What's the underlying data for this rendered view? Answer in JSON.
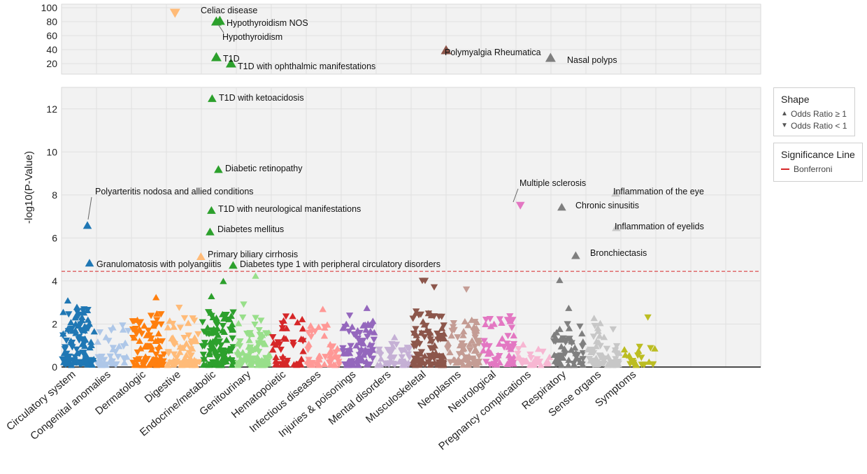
{
  "chart_data": {
    "type": "scatter",
    "ylabel": "-log10(P-Value)",
    "categories": [
      "Circulatory system",
      "Congenital anomalies",
      "Dermatologic",
      "Digestive",
      "Endocrine/metabolic",
      "Genitourinary",
      "Hematopoietic",
      "Infectious diseases",
      "Injuries & poisonings",
      "Mental disorders",
      "Musculoskeletal",
      "Neoplasms",
      "Neurological",
      "Pregnancy complications",
      "Respiratory",
      "Sense organs",
      "Symptoms"
    ],
    "category_colors": [
      "#1f77b4",
      "#aec7e8",
      "#ff7f0e",
      "#ffbb78",
      "#2ca02c",
      "#98df8a",
      "#d62728",
      "#ff9896",
      "#9467bd",
      "#c5b0d5",
      "#8c564b",
      "#c49c94",
      "#e377c2",
      "#f7b6d2",
      "#7f7f7f",
      "#c7c7c7",
      "#bcbd22"
    ],
    "upper_panel": {
      "ylim": [
        5,
        105
      ],
      "yticks": [
        "20",
        "40",
        "60",
        "80",
        "100"
      ]
    },
    "lower_panel": {
      "ylim": [
        0,
        13
      ],
      "yticks": [
        "0",
        "2",
        "4",
        "6",
        "8",
        "10",
        "12"
      ]
    },
    "bonferroni_threshold": 4.45,
    "annotated_points": [
      {
        "label": "Celiac disease",
        "category": "Digestive",
        "y": 92,
        "direction": "down",
        "panel": "upper"
      },
      {
        "label": "Hypothyroidism NOS",
        "category": "Endocrine/metabolic",
        "y": 82,
        "direction": "up",
        "panel": "upper"
      },
      {
        "label": "Hypothyroidism",
        "category": "Endocrine/metabolic",
        "y": 81,
        "direction": "up",
        "panel": "upper"
      },
      {
        "label": "T1D",
        "category": "Endocrine/metabolic",
        "y": 30,
        "direction": "up",
        "panel": "upper"
      },
      {
        "label": "T1D with ophthalmic manifestations",
        "category": "Endocrine/metabolic",
        "y": 21,
        "direction": "up",
        "panel": "upper"
      },
      {
        "label": "Polymyalgia Rheumatica",
        "category": "Musculoskeletal",
        "y": 40,
        "direction": "up",
        "panel": "upper"
      },
      {
        "label": "Nasal polyps",
        "category": "Respiratory",
        "y": 29,
        "direction": "up",
        "panel": "upper"
      },
      {
        "label": "T1D with ketoacidosis",
        "category": "Endocrine/metabolic",
        "y": 12.5,
        "direction": "up",
        "panel": "lower"
      },
      {
        "label": "Diabetic retinopathy",
        "category": "Endocrine/metabolic",
        "y": 9.2,
        "direction": "up",
        "panel": "lower"
      },
      {
        "label": "T1D with neurological manifestations",
        "category": "Endocrine/metabolic",
        "y": 7.3,
        "direction": "up",
        "panel": "lower"
      },
      {
        "label": "Diabetes mellitus",
        "category": "Endocrine/metabolic",
        "y": 6.3,
        "direction": "up",
        "panel": "lower"
      },
      {
        "label": "Primary biliary cirrhosis",
        "category": "Digestive",
        "y": 5.15,
        "direction": "up",
        "panel": "lower"
      },
      {
        "label": "Diabetes type 1 with peripheral circulatory disorders",
        "category": "Endocrine/metabolic",
        "y": 4.75,
        "direction": "up",
        "panel": "lower"
      },
      {
        "label": "Polyarteritis nodosa and allied conditions",
        "category": "Circulatory system",
        "y": 6.6,
        "direction": "up",
        "panel": "lower"
      },
      {
        "label": "Granulomatosis with polyangiitis",
        "category": "Circulatory system",
        "y": 4.85,
        "direction": "up",
        "panel": "lower"
      },
      {
        "label": "Multiple sclerosis",
        "category": "Neurological",
        "y": 7.5,
        "direction": "down",
        "panel": "lower"
      },
      {
        "label": "Inflammation of the eye",
        "category": "Sense organs",
        "y": 8.1,
        "direction": "up",
        "panel": "lower"
      },
      {
        "label": "Chronic sinusitis",
        "category": "Respiratory",
        "y": 7.45,
        "direction": "up",
        "panel": "lower"
      },
      {
        "label": "Inflammation of eyelids",
        "category": "Sense organs",
        "y": 6.5,
        "direction": "up",
        "panel": "lower"
      },
      {
        "label": "Bronchiectasis",
        "category": "Respiratory",
        "y": 5.2,
        "direction": "up",
        "panel": "lower"
      }
    ],
    "notable_points": [
      {
        "category": "Circulatory system",
        "y": 3.1,
        "direction": "up"
      },
      {
        "category": "Circulatory system",
        "y": 2.8,
        "direction": "up"
      },
      {
        "category": "Dermatologic",
        "y": 3.25,
        "direction": "up"
      },
      {
        "category": "Digestive",
        "y": 2.75,
        "direction": "down"
      },
      {
        "category": "Endocrine/metabolic",
        "y": 4.0,
        "direction": "up"
      },
      {
        "category": "Endocrine/metabolic",
        "y": 3.3,
        "direction": "up"
      },
      {
        "category": "Genitourinary",
        "y": 4.25,
        "direction": "up"
      },
      {
        "category": "Genitourinary",
        "y": 2.9,
        "direction": "down"
      },
      {
        "category": "Infectious diseases",
        "y": 2.7,
        "direction": "up"
      },
      {
        "category": "Injuries & poisonings",
        "y": 2.75,
        "direction": "up"
      },
      {
        "category": "Musculoskeletal",
        "y": 4.0,
        "direction": "down"
      },
      {
        "category": "Musculoskeletal",
        "y": 3.7,
        "direction": "down"
      },
      {
        "category": "Musculoskeletal",
        "y": 4.0,
        "direction": "down"
      },
      {
        "category": "Neoplasms",
        "y": 3.6,
        "direction": "down"
      },
      {
        "category": "Respiratory",
        "y": 4.05,
        "direction": "up"
      },
      {
        "category": "Respiratory",
        "y": 2.75,
        "direction": "up"
      },
      {
        "category": "Symptoms",
        "y": 2.3,
        "direction": "down"
      }
    ],
    "legend": {
      "shape": {
        "title": "Shape",
        "items": [
          "Odds Ratio ≥ 1",
          "Odds Ratio < 1"
        ]
      },
      "significance": {
        "title": "Significance Line",
        "items": [
          "Bonferroni"
        ]
      }
    },
    "threshold_color": "#d62728",
    "grid": true
  }
}
